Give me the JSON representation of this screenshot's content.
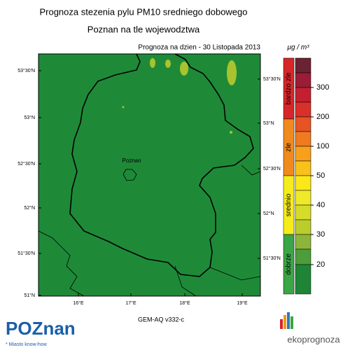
{
  "header": {
    "title_lines": [
      "Prognoza stezenia pylu PM10 sredniego dobowego",
      "Poznan na tle wojewodztwa"
    ],
    "forecast_date": "Prognoza na dzien -  30 Listopada 2013"
  },
  "map": {
    "lat_labels_left": [
      "53°30'N",
      "53°N",
      "52°30'N",
      "52°N",
      "51°30'N",
      "51°N"
    ],
    "lat_labels_right": [
      "53°30'N",
      "53°N",
      "52°30'N",
      "52°N",
      "51°30'N"
    ],
    "lon_labels": [
      "16°E",
      "17°E",
      "18°E",
      "19°E"
    ],
    "city_label": "Poznan",
    "model_label": "GEM-AQ v332-c"
  },
  "legend": {
    "units": "μg / m³",
    "categories": [
      "bardzo zle",
      "zle",
      "srednio",
      "dobrze"
    ],
    "ticks": [
      300,
      200,
      100,
      50,
      40,
      30,
      20
    ]
  },
  "logos": {
    "left": "POZnan",
    "left_sub": "* Miasto know-how",
    "right": "ekoprognoza"
  }
}
